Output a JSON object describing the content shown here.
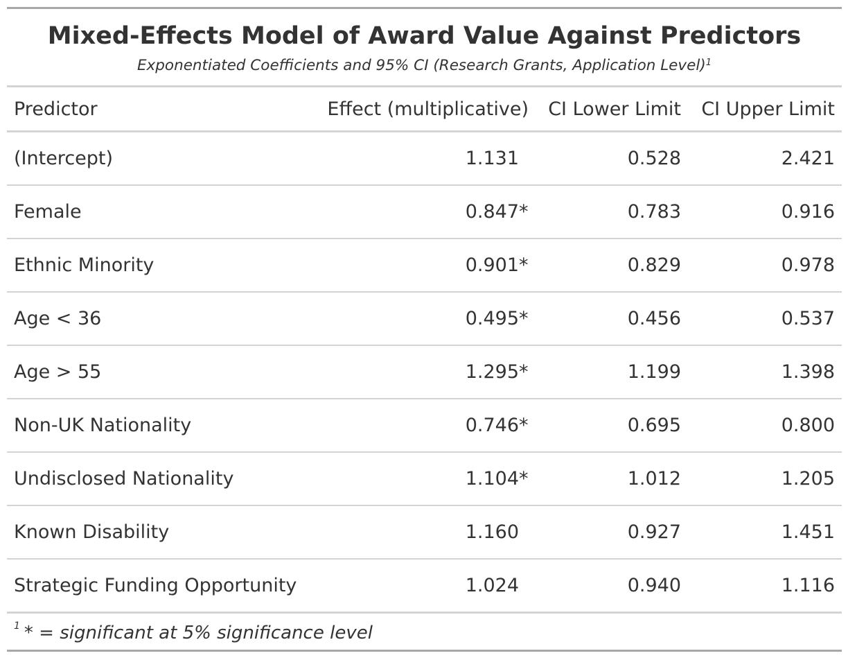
{
  "title": "Mixed-Effects Model of Award Value Against Predictors",
  "subtitle": "Exponentiated Coefficients and 95% CI (Research Grants, Application Level)",
  "subtitle_footnote_mark": "1",
  "columns": {
    "predictor": "Predictor",
    "effect": "Effect (multiplicative)",
    "ci_lower": "CI Lower Limit",
    "ci_upper": "CI Upper Limit"
  },
  "rows": [
    {
      "predictor": "(Intercept)",
      "effect": "1.131",
      "sig": "",
      "ci_lower": "0.528",
      "ci_upper": "2.421"
    },
    {
      "predictor": "Female",
      "effect": "0.847",
      "sig": "*",
      "ci_lower": "0.783",
      "ci_upper": "0.916"
    },
    {
      "predictor": "Ethnic Minority",
      "effect": "0.901",
      "sig": "*",
      "ci_lower": "0.829",
      "ci_upper": "0.978"
    },
    {
      "predictor": "Age < 36",
      "effect": "0.495",
      "sig": "*",
      "ci_lower": "0.456",
      "ci_upper": "0.537"
    },
    {
      "predictor": "Age > 55",
      "effect": "1.295",
      "sig": "*",
      "ci_lower": "1.199",
      "ci_upper": "1.398"
    },
    {
      "predictor": "Non-UK Nationality",
      "effect": "0.746",
      "sig": "*",
      "ci_lower": "0.695",
      "ci_upper": "0.800"
    },
    {
      "predictor": "Undisclosed Nationality",
      "effect": "1.104",
      "sig": "*",
      "ci_lower": "1.012",
      "ci_upper": "1.205"
    },
    {
      "predictor": "Known Disability",
      "effect": "1.160",
      "sig": "",
      "ci_lower": "0.927",
      "ci_upper": "1.451"
    },
    {
      "predictor": "Strategic Funding Opportunity",
      "effect": "1.024",
      "sig": "",
      "ci_lower": "0.940",
      "ci_upper": "1.116"
    }
  ],
  "footnote": {
    "mark": "1",
    "text": "* = significant at 5% significance level"
  },
  "colors": {
    "text": "#333333",
    "rule_heavy": "#a8a8a8",
    "rule_light": "#d3d3d3",
    "background": "#ffffff"
  }
}
